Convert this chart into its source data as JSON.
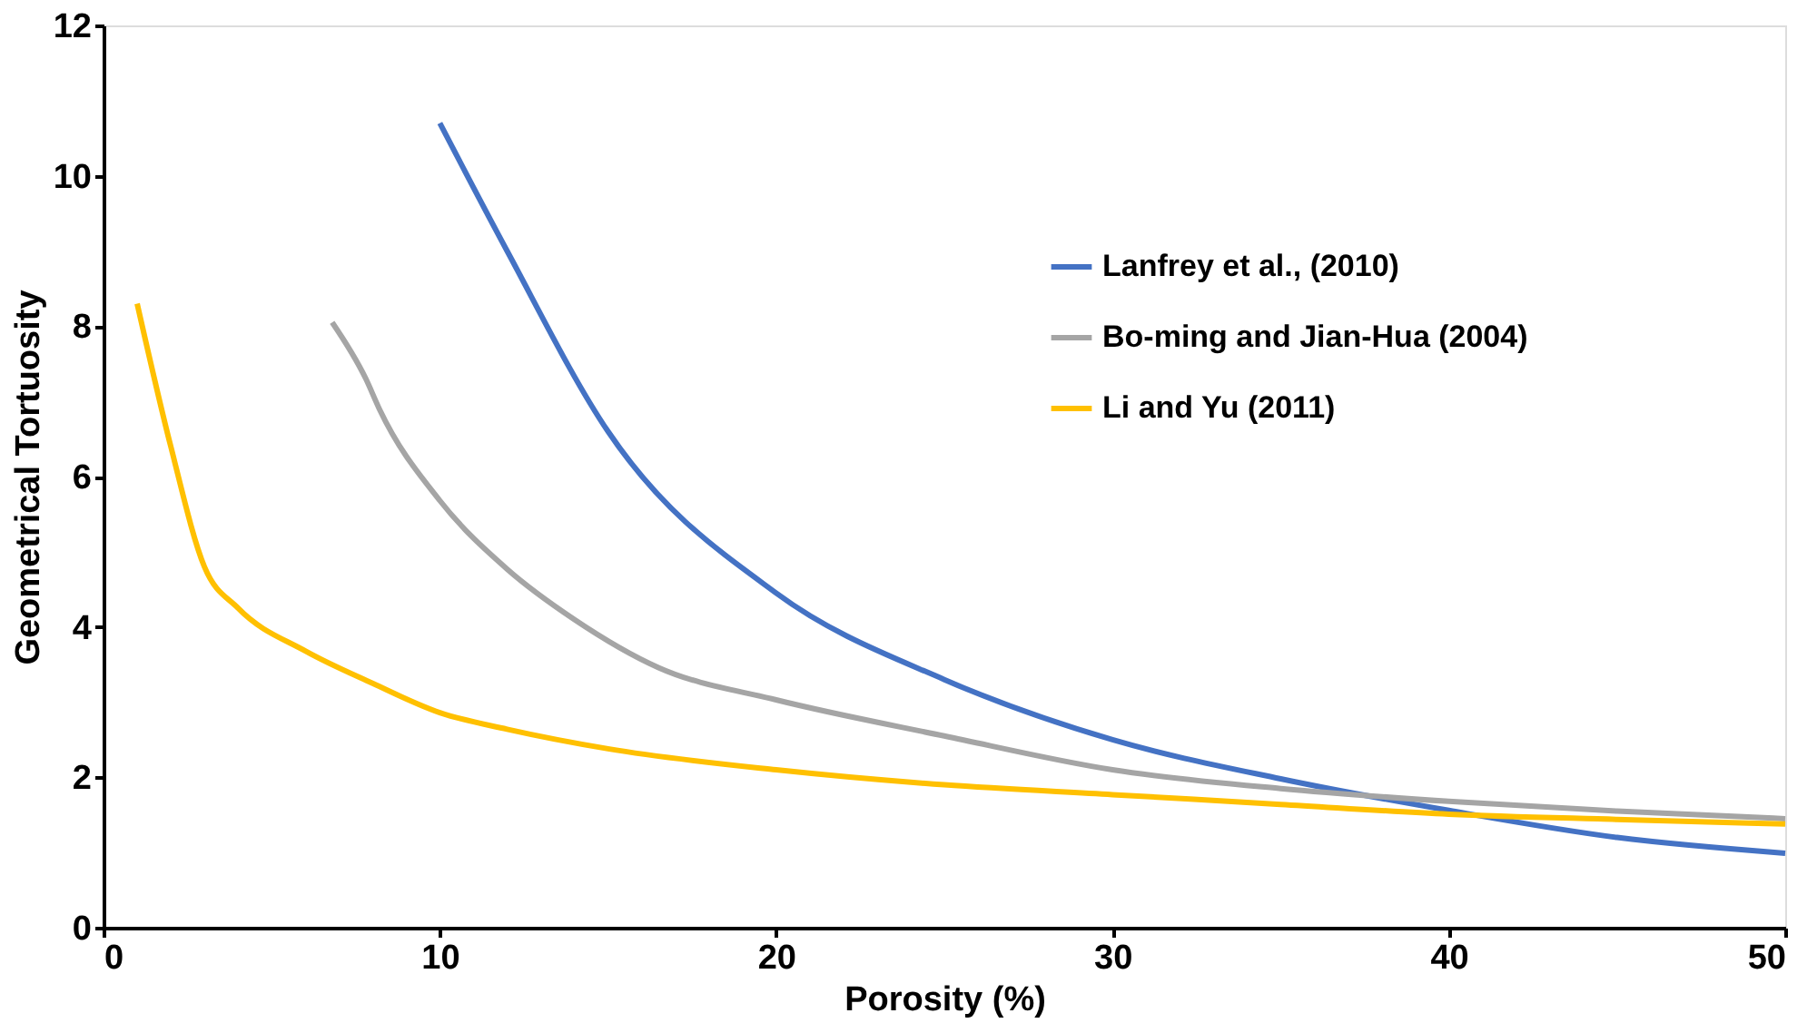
{
  "chart_data": {
    "type": "line",
    "xlabel": "Porosity (%)",
    "ylabel": "Geometrical Tortuosity",
    "xlim": [
      0,
      50
    ],
    "xticks": [
      0,
      10,
      20,
      30,
      40,
      50
    ],
    "ylim": [
      0,
      12
    ],
    "yticks": [
      0,
      2,
      4,
      6,
      8,
      10,
      12
    ],
    "grid": false,
    "legend": "right",
    "line_style": "solid",
    "marker": "none",
    "series": [
      {
        "name": "Lanfrey et al., (2010)",
        "color": "#4472c4",
        "x": [
          10,
          12,
          15,
          20,
          25,
          30,
          35,
          40,
          45,
          50
        ],
        "values": [
          10.7,
          9.0,
          6.6,
          4.45,
          3.3,
          2.5,
          1.98,
          1.56,
          1.2,
          0.99
        ]
      },
      {
        "name": "Bo-ming and Jian-Hua (2004)",
        "color": "#a5a5a5",
        "x": [
          6.8,
          7.8,
          8.2,
          10,
          12,
          14,
          16.5,
          20,
          25,
          30,
          35,
          40,
          45,
          50
        ],
        "values": [
          8.05,
          7.3,
          6.9,
          5.68,
          4.77,
          4.1,
          3.46,
          3.03,
          2.55,
          2.1,
          1.85,
          1.68,
          1.55,
          1.45
        ]
      },
      {
        "name": "Li and Yu (2011)",
        "color": "#ffc000",
        "x": [
          1,
          2,
          3,
          4,
          6,
          8,
          10,
          12,
          15,
          20,
          25,
          30,
          35,
          40,
          45,
          50
        ],
        "values": [
          8.3,
          6.4,
          4.8,
          4.25,
          3.68,
          3.25,
          2.86,
          2.64,
          2.38,
          2.1,
          1.9,
          1.77,
          1.64,
          1.51,
          1.44,
          1.38
        ]
      }
    ]
  }
}
